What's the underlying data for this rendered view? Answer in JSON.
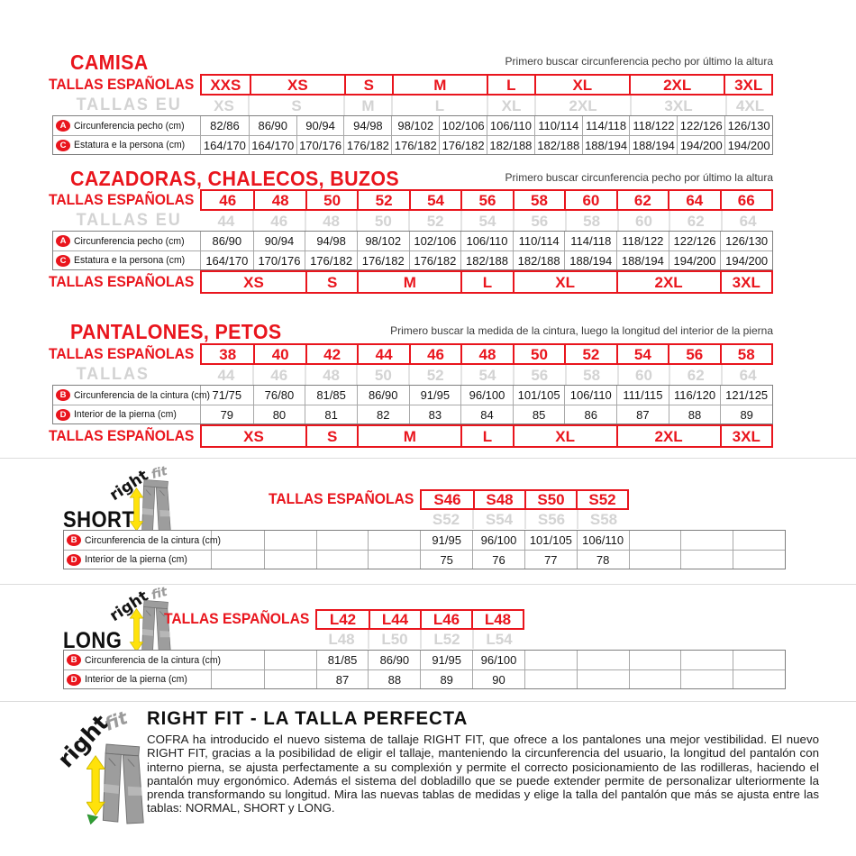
{
  "colors": {
    "red": "#e9151d",
    "gray_sizes": "#d3d3d3"
  },
  "camisa": {
    "title": "CAMISA",
    "note": "Primero buscar circunferencia pecho por último la altura",
    "label_sizes_es": "TALLAS ESPAÑOLAS",
    "label_sizes_eu": "TALLAS EU",
    "sizes_es": [
      {
        "label": "XXS",
        "span": 1
      },
      {
        "label": "XS",
        "span": 2
      },
      {
        "label": "S",
        "span": 1
      },
      {
        "label": "M",
        "span": 2
      },
      {
        "label": "L",
        "span": 1
      },
      {
        "label": "XL",
        "span": 2
      },
      {
        "label": "2XL",
        "span": 2
      },
      {
        "label": "3XL",
        "span": 1
      }
    ],
    "sizes_eu": [
      {
        "label": "XS",
        "span": 1
      },
      {
        "label": "S",
        "span": 2
      },
      {
        "label": "M",
        "span": 1
      },
      {
        "label": "L",
        "span": 2
      },
      {
        "label": "XL",
        "span": 1
      },
      {
        "label": "2XL",
        "span": 2
      },
      {
        "label": "3XL",
        "span": 2
      },
      {
        "label": "4XL",
        "span": 1
      }
    ],
    "rows": [
      {
        "icon": "A",
        "label": "Circunferencia pecho (cm)",
        "values": [
          "82/86",
          "86/90",
          "90/94",
          "94/98",
          "98/102",
          "102/106",
          "106/110",
          "110/114",
          "114/118",
          "118/122",
          "122/126",
          "126/130"
        ]
      },
      {
        "icon": "C",
        "label": "Estatura e la persona (cm)",
        "values": [
          "164/170",
          "164/170",
          "170/176",
          "176/182",
          "176/182",
          "176/182",
          "182/188",
          "182/188",
          "188/194",
          "188/194",
          "194/200",
          "194/200"
        ]
      }
    ]
  },
  "cazadoras": {
    "title": "CAZADORAS, CHALECOS, BUZOS",
    "note": "Primero buscar circunferencia pecho por último la altura",
    "label_sizes_es": "TALLAS ESPAÑOLAS",
    "label_sizes_eu": "TALLAS EU",
    "label_sizes_es_bottom": "TALLAS ESPAÑOLAS",
    "sizes_es": [
      "46",
      "48",
      "50",
      "52",
      "54",
      "56",
      "58",
      "60",
      "62",
      "64",
      "66"
    ],
    "sizes_eu": [
      "44",
      "46",
      "48",
      "50",
      "52",
      "54",
      "56",
      "58",
      "60",
      "62",
      "64"
    ],
    "rows": [
      {
        "icon": "A",
        "label": "Circunferencia pecho (cm)",
        "values": [
          "86/90",
          "90/94",
          "94/98",
          "98/102",
          "102/106",
          "106/110",
          "110/114",
          "114/118",
          "118/122",
          "122/126",
          "126/130"
        ]
      },
      {
        "icon": "C",
        "label": "Estatura e la persona (cm)",
        "values": [
          "164/170",
          "170/176",
          "176/182",
          "176/182",
          "176/182",
          "182/188",
          "182/188",
          "188/194",
          "188/194",
          "194/200",
          "194/200"
        ]
      }
    ],
    "sizes_es_bottom": [
      {
        "label": "XS",
        "span": 2
      },
      {
        "label": "S",
        "span": 1
      },
      {
        "label": "M",
        "span": 2
      },
      {
        "label": "L",
        "span": 1
      },
      {
        "label": "XL",
        "span": 2
      },
      {
        "label": "2XL",
        "span": 2
      },
      {
        "label": "3XL",
        "span": 1
      }
    ]
  },
  "pantalones": {
    "title": "PANTALONES, PETOS",
    "note": "Primero buscar la medida de la cintura, luego la longitud del interior de la pierna",
    "label_sizes_es": "TALLAS ESPAÑOLAS",
    "label_sizes_eu": "TALLAS",
    "label_sizes_es_bottom": "TALLAS ESPAÑOLAS",
    "sizes_es": [
      "38",
      "40",
      "42",
      "44",
      "46",
      "48",
      "50",
      "52",
      "54",
      "56",
      "58"
    ],
    "sizes_eu": [
      "44",
      "46",
      "48",
      "50",
      "52",
      "54",
      "56",
      "58",
      "60",
      "62",
      "64"
    ],
    "rows": [
      {
        "icon": "B",
        "label": "Circunferencia de la cintura (cm)",
        "values": [
          "71/75",
          "76/80",
          "81/85",
          "86/90",
          "91/95",
          "96/100",
          "101/105",
          "106/110",
          "111/115",
          "116/120",
          "121/125"
        ]
      },
      {
        "icon": "D",
        "label": "Interior de la pierna (cm)",
        "values": [
          "79",
          "80",
          "81",
          "82",
          "83",
          "84",
          "85",
          "86",
          "87",
          "88",
          "89"
        ]
      }
    ],
    "sizes_es_bottom": [
      {
        "label": "XS",
        "span": 2
      },
      {
        "label": "S",
        "span": 1
      },
      {
        "label": "M",
        "span": 2
      },
      {
        "label": "L",
        "span": 1
      },
      {
        "label": "XL",
        "span": 2
      },
      {
        "label": "2XL",
        "span": 2
      },
      {
        "label": "3XL",
        "span": 1
      }
    ]
  },
  "short": {
    "label": "SHORT",
    "label_sizes_es": "TALLAS ESPAÑOLAS",
    "sizes_es": [
      "S46",
      "S48",
      "S50",
      "S52"
    ],
    "sizes_eu": [
      "S52",
      "S54",
      "S56",
      "S58"
    ],
    "rows": [
      {
        "icon": "B",
        "label": "Circunferencia de la cintura (cm)",
        "values": [
          "",
          "",
          "",
          "",
          "91/95",
          "96/100",
          "101/105",
          "106/110",
          "",
          "",
          ""
        ]
      },
      {
        "icon": "D",
        "label": "Interior de la pierna (cm)",
        "values": [
          "",
          "",
          "",
          "",
          "75",
          "76",
          "77",
          "78",
          "",
          "",
          ""
        ]
      }
    ]
  },
  "long": {
    "label": "LONG",
    "label_sizes_es": "TALLAS ESPAÑOLAS",
    "sizes_es": [
      "L42",
      "L44",
      "L46",
      "L48"
    ],
    "sizes_eu": [
      "L48",
      "L50",
      "L52",
      "L54"
    ],
    "rows": [
      {
        "icon": "B",
        "label": "Circunferencia de la cintura (cm)",
        "values": [
          "",
          "",
          "81/85",
          "86/90",
          "91/95",
          "96/100",
          "",
          "",
          "",
          "",
          ""
        ]
      },
      {
        "icon": "D",
        "label": "Interior de la pierna (cm)",
        "values": [
          "",
          "",
          "87",
          "88",
          "89",
          "90",
          "",
          "",
          "",
          "",
          ""
        ]
      }
    ]
  },
  "rightfit": {
    "logo_right": "right",
    "logo_fit": "fit",
    "title": "RIGHT FIT - LA TALLA PERFECTA",
    "paragraph": "COFRA ha introducido el nuevo sistema de tallaje RIGHT FIT, que ofrece a los pantalones una mejor vestibilidad. El nuevo RIGHT FIT, gracias a la posibilidad de eligir el tallaje, manteniendo la circunferencia del usuario, la longitud del pantalón con interno pierna, se ajusta perfectamente a su complexión y permite el correcto posicionamiento de las rodilleras, haciendo el pantalón muy ergonómico. Además el sistema del dobladillo que se puede extender permite de personalizar ulteriormente la prenda transformando su longitud. Mira las nuevas tablas de medidas y elige la talla del pantalón que más se ajusta entre las tablas: NORMAL, SHORT y LONG."
  }
}
